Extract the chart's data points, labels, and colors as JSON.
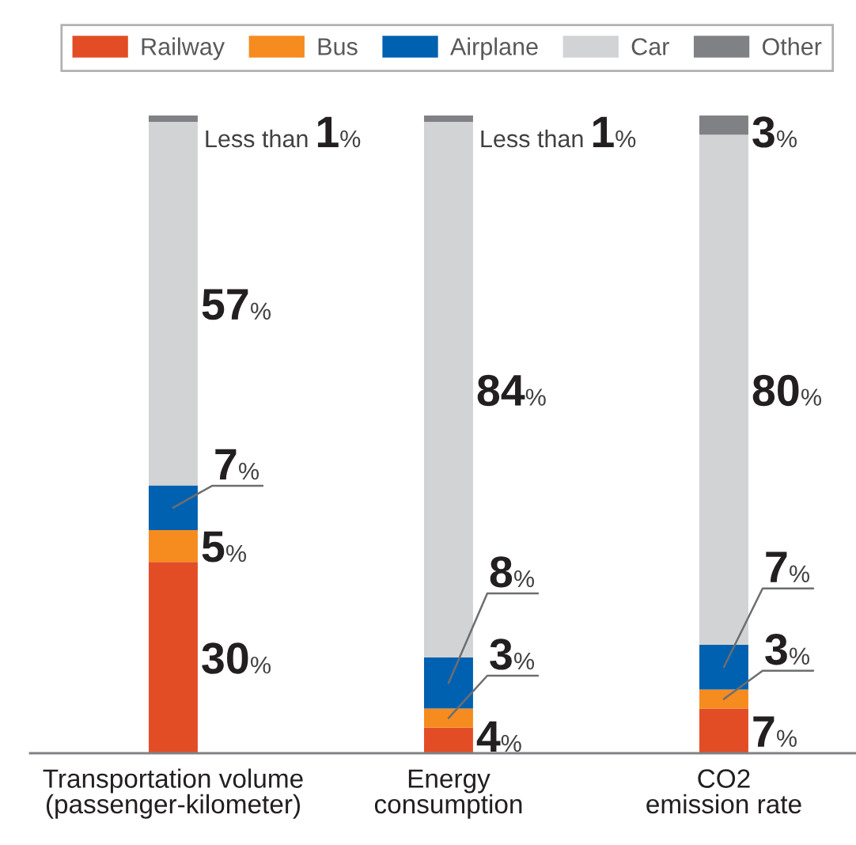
{
  "chart_data": {
    "type": "bar",
    "stacked": true,
    "categories": [
      "Transportation volume\n(passenger-kilometer)",
      "Energy\nconsumption",
      "CO2\nemission rate"
    ],
    "series": [
      {
        "name": "Railway",
        "color": "#e34d26",
        "values": [
          30,
          4,
          7
        ],
        "value_labels": [
          "30%",
          "4%",
          "7%"
        ]
      },
      {
        "name": "Bus",
        "color": "#f68b1f",
        "values": [
          5,
          3,
          3
        ],
        "value_labels": [
          "5%",
          "3%",
          "3%"
        ]
      },
      {
        "name": "Airplane",
        "color": "#0061b0",
        "values": [
          7,
          8,
          7
        ],
        "value_labels": [
          "7%",
          "8%",
          "7%"
        ]
      },
      {
        "name": "Car",
        "color": "#d1d3d4",
        "values": [
          57,
          84,
          80
        ],
        "value_labels": [
          "57%",
          "84%",
          "80%"
        ]
      },
      {
        "name": "Other",
        "color": "#808184",
        "values": [
          1,
          1,
          3
        ],
        "value_labels": [
          null,
          null,
          "3%"
        ]
      }
    ],
    "annotations": [
      {
        "text": "Less than 1%",
        "x": "Transportation volume\n(passenger-kilometer)",
        "y": 100
      },
      {
        "text": "Less than 1%",
        "x": "Energy\nconsumption",
        "y": 100
      }
    ],
    "ylim": [
      0,
      100
    ],
    "tick_labels": "x",
    "legend": "top"
  }
}
